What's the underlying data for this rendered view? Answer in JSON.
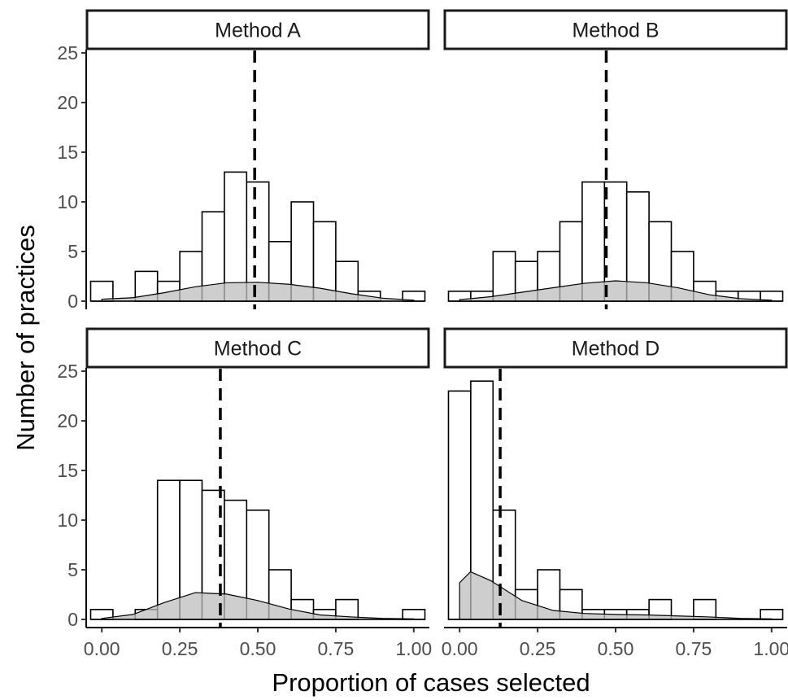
{
  "chart_data": {
    "type": "bar",
    "xlabel": "Proportion of cases selected",
    "ylabel": "Number of practices",
    "xlim": [
      -0.05,
      1.05
    ],
    "ylim": [
      0,
      25
    ],
    "x_ticks": [
      "0.00",
      "0.25",
      "0.50",
      "0.75",
      "1.00"
    ],
    "y_ticks": [
      "0",
      "5",
      "10",
      "15",
      "20",
      "25"
    ],
    "bin_width": 0.0714,
    "bin_centers": [
      0.0,
      0.0714,
      0.1429,
      0.2143,
      0.2857,
      0.3571,
      0.4286,
      0.5,
      0.5714,
      0.6429,
      0.7143,
      0.7857,
      0.8571,
      0.9286,
      1.0
    ],
    "grid": false,
    "panels": [
      {
        "name": "Method A",
        "counts": [
          2,
          0,
          3,
          2,
          5,
          9,
          13,
          12,
          6,
          10,
          8,
          4,
          1,
          0,
          1
        ],
        "mean_line": 0.49,
        "density": [
          [
            0.0,
            0.2
          ],
          [
            0.1,
            0.35
          ],
          [
            0.2,
            0.85
          ],
          [
            0.3,
            1.45
          ],
          [
            0.4,
            1.85
          ],
          [
            0.5,
            1.9
          ],
          [
            0.6,
            1.7
          ],
          [
            0.7,
            1.3
          ],
          [
            0.8,
            0.75
          ],
          [
            0.9,
            0.3
          ],
          [
            1.0,
            0.1
          ]
        ]
      },
      {
        "name": "Method B",
        "counts": [
          1,
          1,
          5,
          4,
          5,
          8,
          12,
          12,
          11,
          8,
          5,
          2,
          1,
          1,
          1
        ],
        "mean_line": 0.47,
        "density": [
          [
            0.0,
            0.15
          ],
          [
            0.1,
            0.45
          ],
          [
            0.2,
            0.9
          ],
          [
            0.3,
            1.35
          ],
          [
            0.4,
            1.8
          ],
          [
            0.5,
            2.05
          ],
          [
            0.6,
            1.85
          ],
          [
            0.7,
            1.35
          ],
          [
            0.8,
            0.65
          ],
          [
            0.9,
            0.25
          ],
          [
            1.0,
            0.1
          ]
        ]
      },
      {
        "name": "Method C",
        "counts": [
          1,
          0,
          1,
          14,
          14,
          13,
          12,
          11,
          5,
          2,
          1,
          2,
          0,
          0,
          1
        ],
        "mean_line": 0.38,
        "density": [
          [
            0.0,
            0.1
          ],
          [
            0.1,
            0.5
          ],
          [
            0.2,
            1.7
          ],
          [
            0.3,
            2.7
          ],
          [
            0.4,
            2.55
          ],
          [
            0.5,
            1.9
          ],
          [
            0.6,
            1.05
          ],
          [
            0.7,
            0.45
          ],
          [
            0.8,
            0.25
          ],
          [
            0.9,
            0.1
          ],
          [
            1.0,
            0.05
          ]
        ]
      },
      {
        "name": "Method D",
        "counts": [
          23,
          24,
          11,
          3,
          5,
          3,
          1,
          1,
          1,
          2,
          0,
          2,
          0,
          0,
          1
        ],
        "mean_line": 0.13,
        "density": [
          [
            0.0,
            3.7
          ],
          [
            0.035,
            4.8
          ],
          [
            0.1,
            3.9
          ],
          [
            0.2,
            1.9
          ],
          [
            0.3,
            0.9
          ],
          [
            0.4,
            0.6
          ],
          [
            0.5,
            0.5
          ],
          [
            0.6,
            0.45
          ],
          [
            0.7,
            0.35
          ],
          [
            0.8,
            0.25
          ],
          [
            0.9,
            0.1
          ],
          [
            1.0,
            0.05
          ]
        ]
      }
    ]
  }
}
